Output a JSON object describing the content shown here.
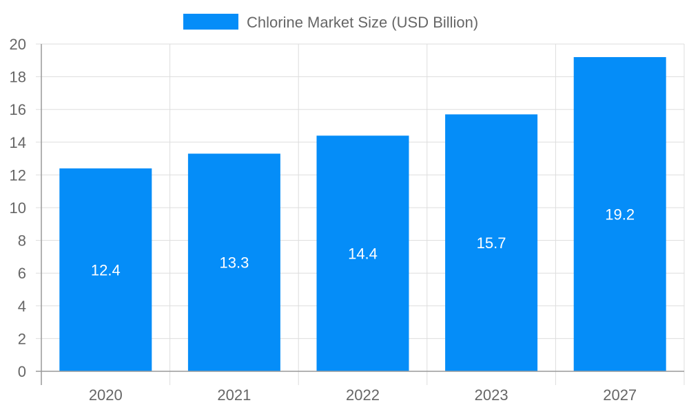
{
  "chart_data": {
    "type": "bar",
    "categories": [
      "2020",
      "2021",
      "2022",
      "2023",
      "2027"
    ],
    "series": [
      {
        "name": "Chlorine Market Size (USD Billion)",
        "values": [
          12.4,
          13.3,
          14.4,
          15.7,
          19.2
        ],
        "color": "#058DF8"
      }
    ],
    "data_labels": [
      "12.4",
      "13.3",
      "14.4",
      "15.7",
      "19.2"
    ],
    "ylim": [
      0,
      20
    ],
    "yticks": [
      "0",
      "2",
      "4",
      "6",
      "8",
      "10",
      "12",
      "14",
      "16",
      "18",
      "20"
    ],
    "grid": true,
    "legend_position": "top-center"
  },
  "colors": {
    "bar": "#058DF8",
    "grid": "#DDDDDD",
    "axis": "#999999",
    "tick_text": "#666666",
    "label_text": "#FFFFFF"
  }
}
